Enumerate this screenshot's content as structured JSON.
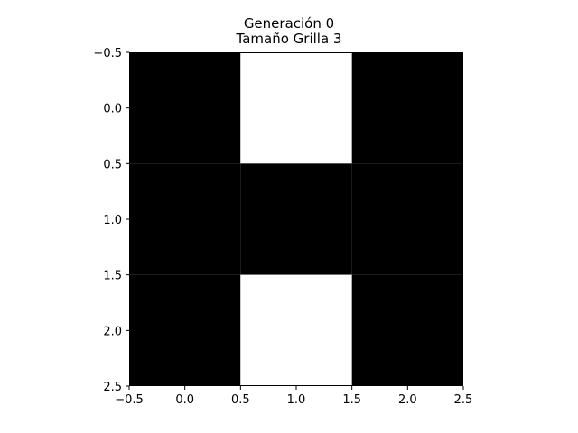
{
  "chart_data": {
    "type": "heatmap",
    "title_lines": [
      "Generación 0",
      "Tamaño Grilla 3"
    ],
    "colormap": {
      "0": "#000000",
      "1": "#ffffff"
    },
    "grid": [
      [
        0,
        1,
        0
      ],
      [
        0,
        0,
        0
      ],
      [
        0,
        1,
        0
      ]
    ],
    "xlim": [
      -0.5,
      2.5
    ],
    "ylim": [
      2.5,
      -0.5
    ],
    "y_inverted": true,
    "xticks": [
      -0.5,
      0.0,
      0.5,
      1.0,
      1.5,
      2.0,
      2.5
    ],
    "xtick_labels": [
      "−0.5",
      "0.0",
      "0.5",
      "1.0",
      "1.5",
      "2.0",
      "2.5"
    ],
    "yticks": [
      -0.5,
      0.0,
      0.5,
      1.0,
      1.5,
      2.0,
      2.5
    ],
    "ytick_labels": [
      "−0.5",
      "0.0",
      "0.5",
      "1.0",
      "1.5",
      "2.0",
      "2.5"
    ],
    "grid_lines": false
  }
}
